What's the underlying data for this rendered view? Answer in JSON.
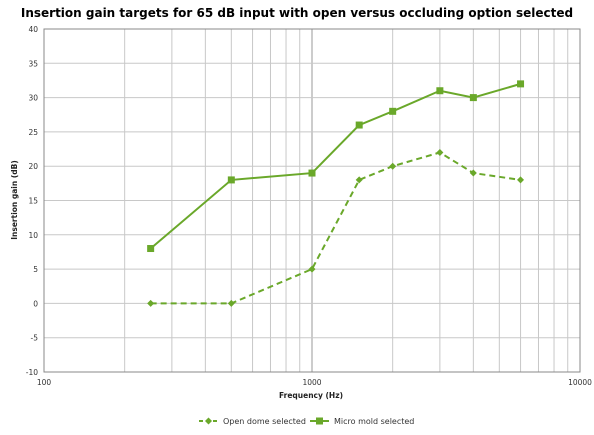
{
  "chart_data": {
    "type": "line",
    "title": "Insertion gain targets for 65 dB input with open versus occluding option selected",
    "xlabel": "Frequency (Hz)",
    "ylabel": "Insertion gain (dB)",
    "x_scale": "log",
    "xlim": [
      100,
      10000
    ],
    "ylim": [
      -10,
      40
    ],
    "x_ticks": [
      "100",
      "1000",
      "10000"
    ],
    "y_ticks": [
      "-10",
      "-5",
      "0",
      "5",
      "10",
      "15",
      "20",
      "25",
      "30",
      "35",
      "40"
    ],
    "grid": true,
    "legend_position": "bottom",
    "series": [
      {
        "name": "Open dome selected",
        "color": "#6aa82a",
        "line_style": "dashed",
        "marker": "diamond",
        "x": [
          250,
          500,
          1000,
          1500,
          2000,
          3000,
          4000,
          6000
        ],
        "y": [
          0,
          0,
          5,
          18,
          20,
          22,
          19,
          18
        ]
      },
      {
        "name": "Micro mold selected",
        "color": "#6aa82a",
        "line_style": "solid",
        "marker": "square",
        "x": [
          250,
          500,
          1000,
          1500,
          2000,
          3000,
          4000,
          6000
        ],
        "y": [
          8,
          18,
          19,
          26,
          28,
          31,
          30,
          32
        ]
      }
    ]
  }
}
